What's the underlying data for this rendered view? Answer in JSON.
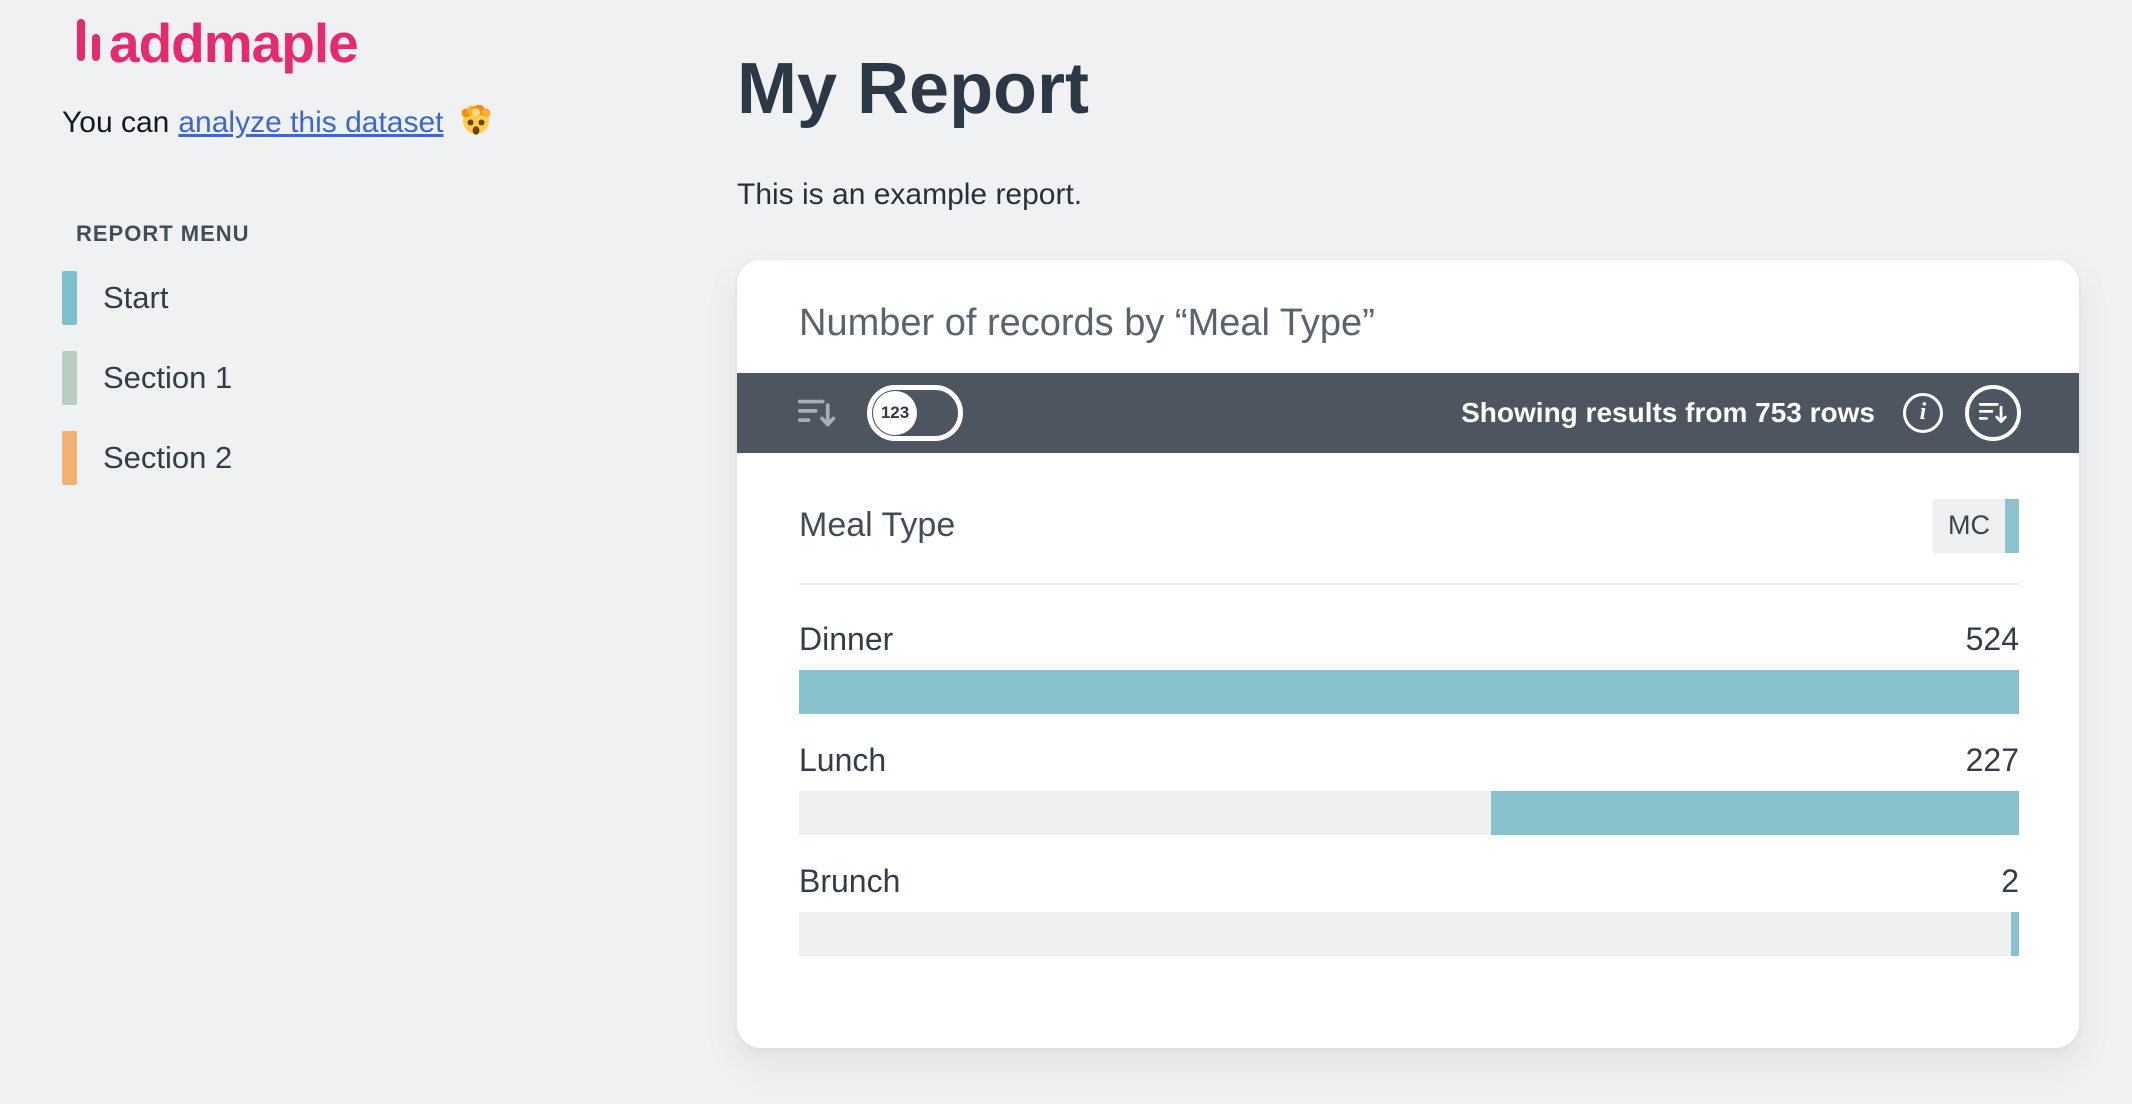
{
  "sidebar": {
    "logo_text": "addmaple",
    "logo_color": "#e72a6f",
    "tagline_prefix": "You can",
    "tagline_link": "analyze this dataset",
    "tagline_emoji": "🤯",
    "link_color": "#3c66d4",
    "menu_label": "REPORT MENU",
    "items": [
      {
        "label": "Start",
        "color": "#7dbfca"
      },
      {
        "label": "Section 1",
        "color": "#b6cfc1"
      },
      {
        "label": "Section 2",
        "color": "#f1b271"
      }
    ]
  },
  "main": {
    "title": "My Report",
    "subtitle": "This is an example report."
  },
  "card": {
    "title": "Number of records by “Meal Type”",
    "toolbar": {
      "toggle_label": "123",
      "status": "Showing results from 753 rows",
      "background": "#4c5560"
    },
    "field_name": "Meal Type",
    "field_type_badge": "MC",
    "field_type_color": "#8cc3ce"
  },
  "chart_data": {
    "type": "bar",
    "orientation": "horizontal",
    "title": "Number of records by “Meal Type”",
    "categories": [
      "Dinner",
      "Lunch",
      "Brunch"
    ],
    "values": [
      524,
      227,
      2
    ],
    "max": 524,
    "total_rows": 753,
    "bar_color": "#87c2cc",
    "track_color": "#eef0f0",
    "fill_anchor": "right",
    "grid": false,
    "legend": false
  }
}
